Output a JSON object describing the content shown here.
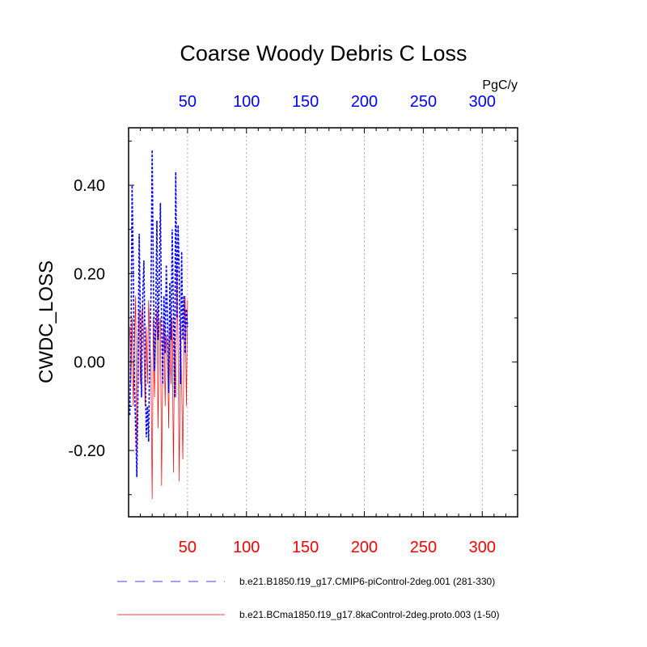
{
  "chart_data": {
    "type": "line",
    "title": "Coarse Woody Debris C Loss",
    "ylabel": "CWDC_LOSS",
    "units": "PgC/y",
    "xlim": [
      0,
      330
    ],
    "ylim": [
      -0.35,
      0.53
    ],
    "x_ticks": [
      50,
      100,
      150,
      200,
      250,
      300
    ],
    "x_tick_labels": [
      "50",
      "100",
      "150",
      "200",
      "250",
      "300"
    ],
    "y_ticks": [
      -0.2,
      0.0,
      0.2,
      0.4
    ],
    "y_tick_labels": [
      "-0.20",
      "0.00",
      "0.20",
      "0.40"
    ],
    "grid": "vertical dotted at major x ticks",
    "x": [
      1,
      2,
      3,
      4,
      5,
      6,
      7,
      8,
      9,
      10,
      11,
      12,
      13,
      14,
      15,
      16,
      17,
      18,
      19,
      20,
      21,
      22,
      23,
      24,
      25,
      26,
      27,
      28,
      29,
      30,
      31,
      32,
      33,
      34,
      35,
      36,
      37,
      38,
      39,
      40,
      41,
      42,
      43,
      44,
      45,
      46,
      47,
      48,
      49,
      50
    ],
    "series": [
      {
        "name": "b.e21.B1850.f19_g17.CMIP6-piControl-2deg.001 (281-330)",
        "color": "#0000ff",
        "style": "dashed",
        "values": [
          -0.12,
          0.05,
          0.4,
          0.2,
          -0.05,
          -0.15,
          -0.26,
          -0.05,
          0.29,
          0.1,
          -0.08,
          0.15,
          0.23,
          0.02,
          -0.17,
          -0.1,
          -0.18,
          0.05,
          0.15,
          0.48,
          0.2,
          -0.02,
          0.1,
          0.32,
          0.05,
          0.18,
          0.36,
          0.08,
          -0.05,
          0.15,
          0.02,
          0.22,
          0.1,
          -0.07,
          0.18,
          0.05,
          0.3,
          0.12,
          -0.08,
          0.43,
          0.1,
          0.31,
          0.2,
          -0.05,
          0.25,
          0.05,
          0.15,
          0.02,
          0.12,
          0.08
        ]
      },
      {
        "name": "b.e21.BCma1850.f19_g17.8kaControl-2deg.proto.003 (1-50)",
        "color": "#ff0000",
        "style": "solid",
        "values": [
          0.08,
          -0.05,
          0.1,
          -0.1,
          0.05,
          0.15,
          -0.22,
          0.05,
          0.12,
          -0.05,
          0.1,
          0.13,
          0.03,
          -0.1,
          0.08,
          -0.05,
          0.14,
          0.05,
          -0.02,
          -0.31,
          0.1,
          -0.08,
          0.05,
          0.12,
          -0.15,
          0.08,
          0.1,
          -0.28,
          0.02,
          0.09,
          -0.1,
          0.06,
          0.03,
          -0.15,
          0.08,
          -0.05,
          0.1,
          -0.25,
          0.05,
          -0.08,
          0.22,
          0.02,
          -0.27,
          0.1,
          -0.05,
          -0.22,
          0.05,
          0.15,
          -0.1,
          0.14
        ]
      }
    ]
  }
}
